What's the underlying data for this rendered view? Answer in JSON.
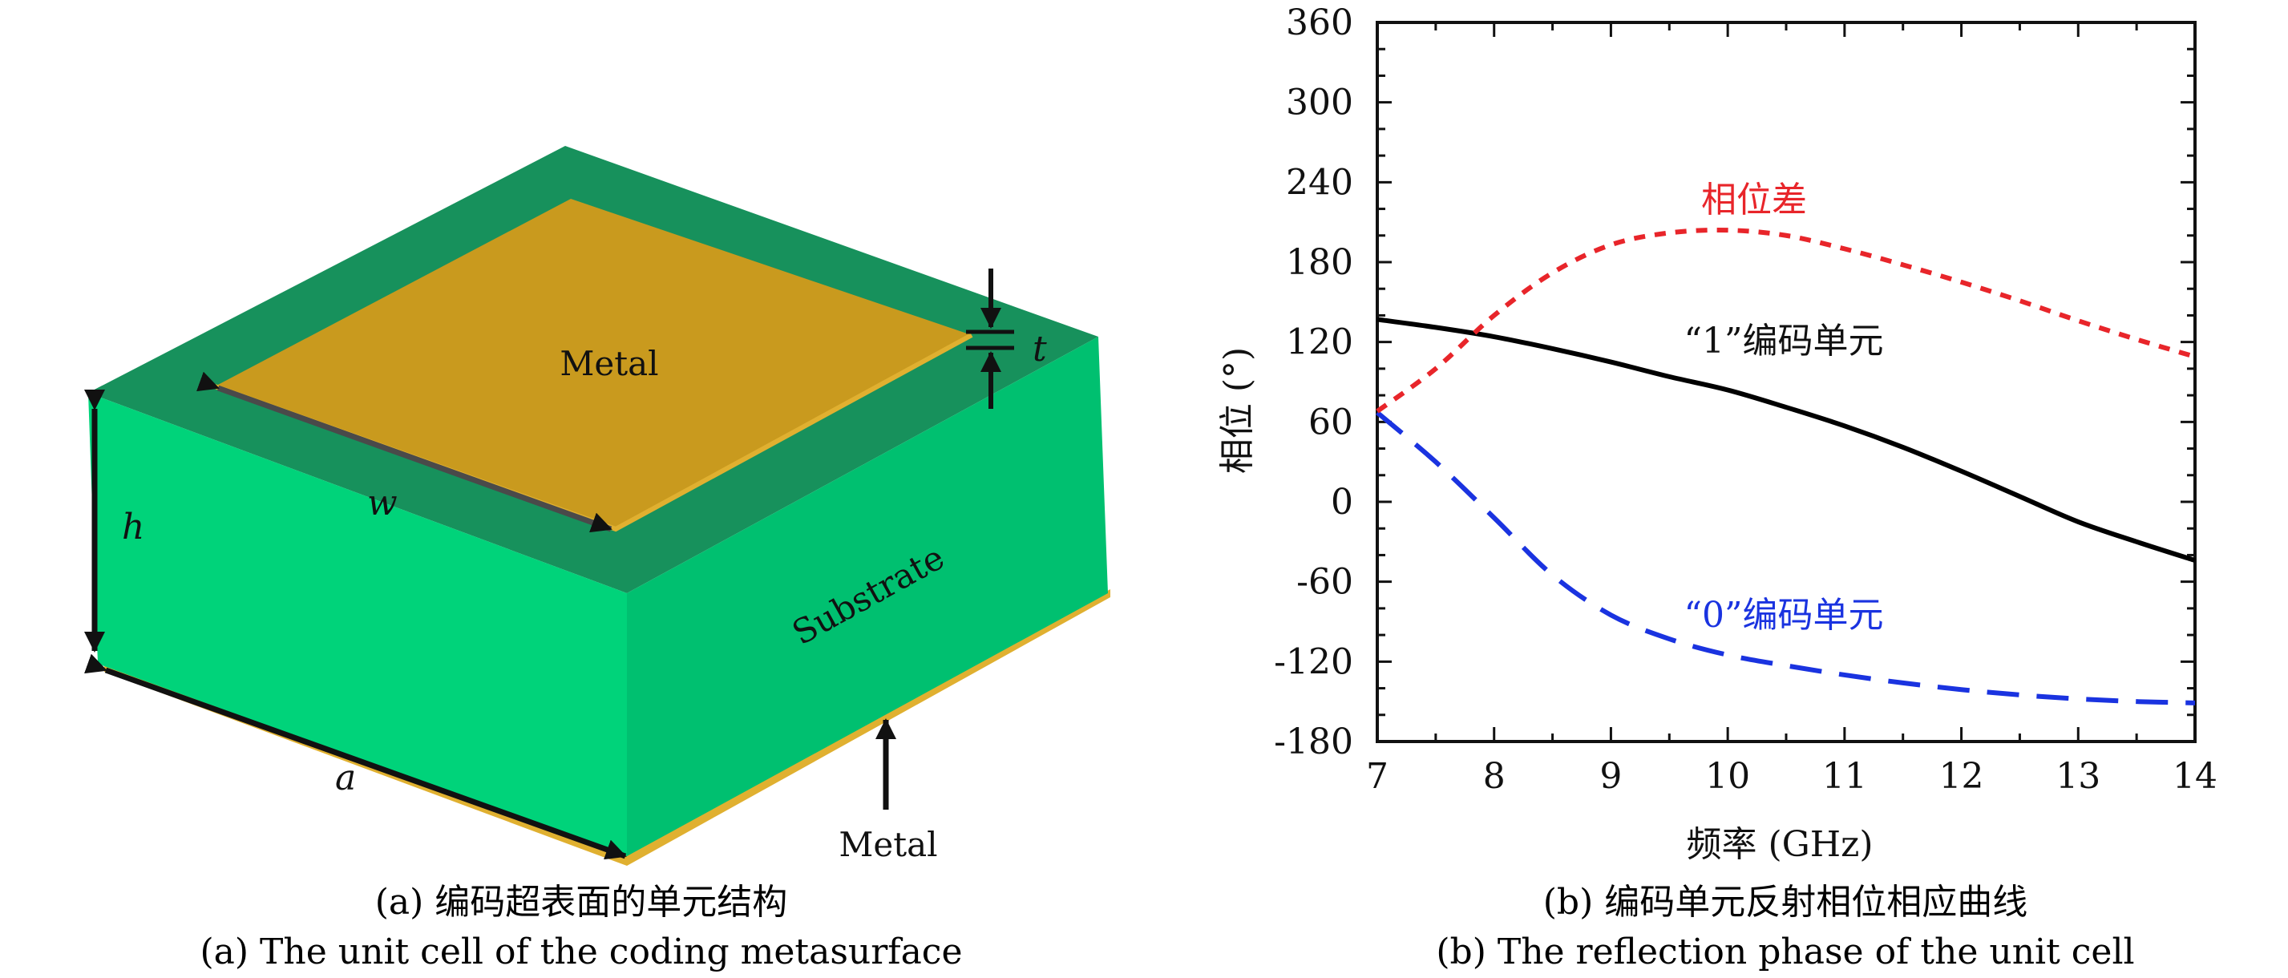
{
  "figure_a": {
    "labels": {
      "metal_top": "Metal",
      "substrate": "Substrate",
      "metal_bottom": "Metal",
      "t": "t",
      "w": "w",
      "h": "h",
      "a": "a"
    },
    "colors": {
      "substrate_top": "#17915c",
      "substrate_front": "#00d37a",
      "substrate_right": "#00c070",
      "metal": "#c99a1e",
      "metal_edge": "#e0b030"
    },
    "caption_cn": "(a) 编码超表面的单元结构",
    "caption_en": "(a) The unit cell of the coding metasurface"
  },
  "figure_b": {
    "caption_cn": "(b) 编码单元反射相位相应曲线",
    "caption_en": "(b) The reflection phase of the unit cell"
  },
  "chart_data": {
    "type": "line",
    "xlabel": "频率 (GHz)",
    "ylabel": "相位 (°)",
    "xlim": [
      7,
      14
    ],
    "ylim": [
      -180,
      360
    ],
    "xticks": [
      7,
      8,
      9,
      10,
      11,
      12,
      13,
      14
    ],
    "yticks": [
      360,
      300,
      240,
      180,
      120,
      60,
      0,
      -60,
      -120,
      -180
    ],
    "ytick_labels": [
      "360",
      "300",
      "240",
      "180",
      "120",
      "60",
      "0",
      "-60",
      "-120",
      "-180"
    ],
    "grid": false,
    "series": [
      {
        "name": "“1”编码单元",
        "color": "#000000",
        "style": "solid",
        "x": [
          7,
          7.5,
          8,
          8.5,
          9,
          9.5,
          10,
          10.5,
          11,
          11.5,
          12,
          12.5,
          13,
          13.5,
          14
        ],
        "y": [
          137,
          131,
          124,
          115,
          105,
          94,
          84,
          71,
          57,
          41,
          23,
          4,
          -15,
          -30,
          -44
        ]
      },
      {
        "name": "“0”编码单元",
        "color": "#1a33e0",
        "style": "dashed",
        "x": [
          7,
          7.5,
          8,
          8.5,
          9,
          9.5,
          10,
          10.5,
          11,
          11.5,
          12,
          12.5,
          13,
          13.5,
          14
        ],
        "y": [
          67,
          30,
          -12,
          -55,
          -85,
          -103,
          -115,
          -123,
          -130,
          -136,
          -141,
          -145,
          -148,
          -150,
          -151
        ]
      },
      {
        "name": "相位差",
        "color": "#e8252a",
        "style": "dotted",
        "x": [
          7,
          7.5,
          8,
          8.5,
          9,
          9.5,
          10,
          10.5,
          11,
          11.5,
          12,
          12.5,
          13,
          13.5,
          14
        ],
        "y": [
          68,
          100,
          140,
          172,
          193,
          202,
          204,
          200,
          190,
          178,
          165,
          151,
          136,
          122,
          109
        ]
      }
    ]
  }
}
